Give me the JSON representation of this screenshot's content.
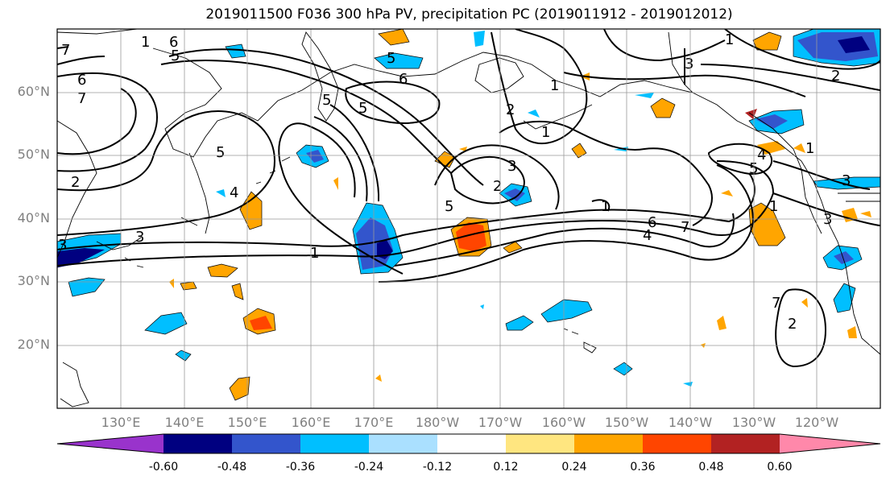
{
  "title": "2019011500 F036 300 hPa PV, precipitation PC (2019011912 - 2019012012)",
  "lat_labels": [
    "60°N",
    "50°N",
    "40°N",
    "30°N",
    "20°N"
  ],
  "lon_labels": [
    "130°E",
    "140°E",
    "150°E",
    "160°E",
    "170°E",
    "180°W",
    "170°W",
    "160°W",
    "150°W",
    "140°W",
    "130°W",
    "120°W"
  ],
  "colorbar": {
    "colors": [
      "#9933cc",
      "#000080",
      "#3355cc",
      "#00bfff",
      "#aae0ff",
      "#ffffff",
      "#ffe680",
      "#ffa500",
      "#ff4500",
      "#b22222",
      "#ff88aa"
    ],
    "tick_labels": [
      "-0.60",
      "-0.48",
      "-0.36",
      "-0.24",
      "-0.12",
      "0.12",
      "0.24",
      "0.36",
      "0.48",
      "0.60"
    ]
  },
  "contour_labels": [
    {
      "text": "1"
    },
    {
      "text": "6"
    },
    {
      "text": "5"
    },
    {
      "text": "7"
    },
    {
      "text": "6"
    },
    {
      "text": "7"
    },
    {
      "text": "2"
    },
    {
      "text": "5"
    },
    {
      "text": "3"
    },
    {
      "text": "4"
    },
    {
      "text": "3"
    },
    {
      "text": "5"
    },
    {
      "text": "5"
    },
    {
      "text": "6"
    },
    {
      "text": "1"
    },
    {
      "text": "5"
    },
    {
      "text": "1"
    },
    {
      "text": "2"
    },
    {
      "text": "3"
    },
    {
      "text": "2"
    },
    {
      "text": "3"
    },
    {
      "text": "1"
    },
    {
      "text": "5"
    },
    {
      "text": "6"
    },
    {
      "text": "7"
    },
    {
      "text": "4"
    },
    {
      "text": "1"
    },
    {
      "text": "4"
    },
    {
      "text": "5"
    },
    {
      "text": "1"
    },
    {
      "text": "1"
    },
    {
      "text": "3"
    },
    {
      "text": "3"
    },
    {
      "text": "2"
    },
    {
      "text": "7"
    },
    {
      "text": "2"
    },
    {
      "text": "1"
    }
  ]
}
